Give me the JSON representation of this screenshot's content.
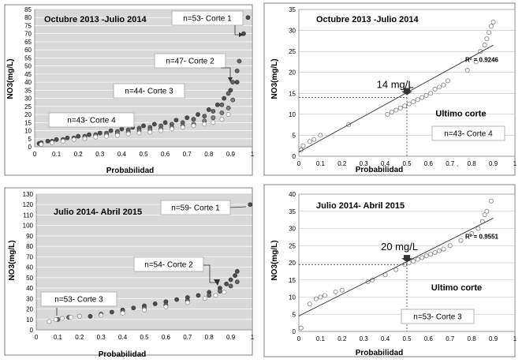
{
  "chart_data": [
    {
      "type": "scatter",
      "title": "Octubre 2013 -Julio 2014",
      "xlabel": "Probabilidad",
      "ylabel": "NO3(mg/L)",
      "xlim": [
        0,
        1
      ],
      "ylim": [
        0,
        85
      ],
      "xticks": [
        "0",
        "0.1",
        "0.2",
        "0.3",
        "0.4",
        "0.5",
        "0.6",
        "0.7",
        "0.8",
        "0.9",
        "1"
      ],
      "yticks": [
        "0",
        "5",
        "10",
        "15",
        "20",
        "25",
        "30",
        "35",
        "40",
        "45",
        "50",
        "55",
        "60",
        "65",
        "70",
        "75",
        "80",
        "85"
      ],
      "background": "#d9d9d9",
      "series": [
        {
          "name": "n=53- Corte 1",
          "color": "#4d4d4d",
          "points": [
            [
              0.02,
              2
            ],
            [
              0.06,
              3.5
            ],
            [
              0.1,
              4.5
            ],
            [
              0.15,
              5.5
            ],
            [
              0.2,
              6.5
            ],
            [
              0.25,
              7.5
            ],
            [
              0.3,
              8.5
            ],
            [
              0.35,
              10
            ],
            [
              0.4,
              11
            ],
            [
              0.45,
              12
            ],
            [
              0.5,
              13
            ],
            [
              0.55,
              14
            ],
            [
              0.6,
              15
            ],
            [
              0.65,
              16.5
            ],
            [
              0.7,
              18
            ],
            [
              0.75,
              20
            ],
            [
              0.8,
              23
            ],
            [
              0.84,
              26
            ],
            [
              0.87,
              30
            ],
            [
              0.9,
              35
            ],
            [
              0.93,
              40
            ],
            [
              0.96,
              70
            ],
            [
              0.98,
              80
            ]
          ]
        },
        {
          "name": "n=47- Corte 2",
          "color": "#666666",
          "points": [
            [
              0.03,
              2.5
            ],
            [
              0.08,
              3.5
            ],
            [
              0.13,
              4.5
            ],
            [
              0.18,
              5.5
            ],
            [
              0.23,
              6.5
            ],
            [
              0.28,
              7.5
            ],
            [
              0.33,
              8.5
            ],
            [
              0.38,
              9.5
            ],
            [
              0.43,
              10.5
            ],
            [
              0.48,
              11.5
            ],
            [
              0.53,
              12
            ],
            [
              0.58,
              13
            ],
            [
              0.63,
              14
            ],
            [
              0.68,
              15
            ],
            [
              0.73,
              17
            ],
            [
              0.78,
              19
            ],
            [
              0.82,
              22
            ],
            [
              0.86,
              26
            ],
            [
              0.89,
              33
            ],
            [
              0.91,
              40
            ],
            [
              0.93,
              47
            ],
            [
              0.94,
              53
            ]
          ]
        },
        {
          "name": "n=44- Corte 3",
          "color": "#7f7f7f",
          "points": [
            [
              0.03,
              2
            ],
            [
              0.08,
              3
            ],
            [
              0.13,
              4
            ],
            [
              0.18,
              5
            ],
            [
              0.23,
              6
            ],
            [
              0.28,
              7
            ],
            [
              0.33,
              7.5
            ],
            [
              0.38,
              8.5
            ],
            [
              0.43,
              9
            ],
            [
              0.48,
              10
            ],
            [
              0.53,
              10.5
            ],
            [
              0.58,
              11
            ],
            [
              0.63,
              12
            ],
            [
              0.68,
              13
            ],
            [
              0.73,
              14
            ],
            [
              0.78,
              16
            ],
            [
              0.82,
              18
            ],
            [
              0.86,
              21
            ],
            [
              0.89,
              24
            ],
            [
              0.91,
              29
            ]
          ]
        },
        {
          "name": "n=43- Corte 4",
          "color": "#ffffff",
          "points": [
            [
              0.03,
              1.5
            ],
            [
              0.08,
              2.5
            ],
            [
              0.13,
              3.5
            ],
            [
              0.18,
              4.5
            ],
            [
              0.23,
              5
            ],
            [
              0.28,
              6
            ],
            [
              0.33,
              6.5
            ],
            [
              0.38,
              7
            ],
            [
              0.43,
              8
            ],
            [
              0.48,
              8.5
            ],
            [
              0.53,
              9
            ],
            [
              0.58,
              10
            ],
            [
              0.63,
              11
            ],
            [
              0.68,
              12
            ],
            [
              0.73,
              13
            ],
            [
              0.78,
              14
            ],
            [
              0.82,
              15
            ],
            [
              0.86,
              17
            ],
            [
              0.89,
              20
            ]
          ]
        }
      ],
      "annotations": [
        "n=53- Corte 1",
        "n=47- Corte 2",
        "n=44- Corte 3",
        "n=43- Corte 4"
      ]
    },
    {
      "type": "scatter",
      "title": "Octubre 2013 -Julio 2014",
      "xlabel": "Probabilidad",
      "ylabel": "NO3(mg/L)",
      "xlim": [
        0,
        1
      ],
      "ylim": [
        0,
        35
      ],
      "xticks": [
        "0",
        "0.1",
        "0.2",
        "0.3",
        "0.4",
        "0.5",
        "0.6",
        "0.7",
        "0.8",
        "0.9",
        "1"
      ],
      "yticks": [
        "0",
        "5",
        "10",
        "15",
        "20",
        "25",
        "30",
        "35"
      ],
      "background": "#ffffff",
      "points": [
        [
          0.01,
          1.5
        ],
        [
          0.02,
          2.5
        ],
        [
          0.05,
          3.5
        ],
        [
          0.07,
          4
        ],
        [
          0.1,
          5
        ],
        [
          0.23,
          7.5
        ],
        [
          0.41,
          10
        ],
        [
          0.43,
          10.5
        ],
        [
          0.45,
          11
        ],
        [
          0.47,
          11.5
        ],
        [
          0.49,
          12
        ],
        [
          0.51,
          12.5
        ],
        [
          0.53,
          13
        ],
        [
          0.55,
          13.5
        ],
        [
          0.57,
          14
        ],
        [
          0.59,
          14.5
        ],
        [
          0.61,
          15
        ],
        [
          0.63,
          16
        ],
        [
          0.65,
          16.5
        ],
        [
          0.67,
          17
        ],
        [
          0.69,
          18
        ],
        [
          0.78,
          20.5
        ],
        [
          0.82,
          22.5
        ],
        [
          0.84,
          25
        ],
        [
          0.86,
          26.5
        ],
        [
          0.87,
          28
        ],
        [
          0.88,
          29.5
        ],
        [
          0.89,
          31
        ],
        [
          0.9,
          32
        ]
      ],
      "trendline": {
        "x1": 0,
        "y1": 1,
        "x2": 0.9,
        "y2": 26.5
      },
      "reference": {
        "x": 0.5,
        "y": 14
      },
      "reference_label": "14 mg/L",
      "r2_label": "R² = 0.9246",
      "subtitle": "Ultimo corte",
      "box_label": "n=43- Corte 4",
      "stray_mark": "`"
    },
    {
      "type": "scatter",
      "title": "Julio 2014- Abril 2015",
      "xlabel": "Probabilidad",
      "ylabel": "NO3(mg/L)",
      "xlim": [
        0,
        1
      ],
      "ylim": [
        0,
        130
      ],
      "xticks": [
        "0",
        "0.1",
        "0.2",
        "0.3",
        "0.4",
        "0.5",
        "0.6",
        "0.7",
        "0.8",
        "0.9",
        "1"
      ],
      "yticks": [
        "0",
        "10",
        "20",
        "30",
        "40",
        "50",
        "60",
        "70",
        "80",
        "90",
        "100",
        "110",
        "120",
        "130"
      ],
      "background": "#d9d9d9",
      "series": [
        {
          "name": "n=59- Corte 1",
          "color": "#4d4d4d",
          "points": [
            [
              0.25,
              13
            ],
            [
              0.3,
              15
            ],
            [
              0.35,
              17
            ],
            [
              0.4,
              19
            ],
            [
              0.45,
              21
            ],
            [
              0.5,
              23
            ],
            [
              0.55,
              25
            ],
            [
              0.6,
              27
            ],
            [
              0.65,
              29
            ],
            [
              0.7,
              31
            ],
            [
              0.75,
              33
            ],
            [
              0.8,
              36
            ],
            [
              0.85,
              40
            ],
            [
              0.88,
              44
            ],
            [
              0.9,
              48
            ],
            [
              0.92,
              52
            ],
            [
              0.93,
              56
            ],
            [
              0.99,
              120
            ]
          ]
        },
        {
          "name": "n=54- Corte 2",
          "color": "#666666",
          "points": [
            [
              0.1,
              10
            ],
            [
              0.15,
              12
            ],
            [
              0.2,
              13
            ],
            [
              0.3,
              15
            ],
            [
              0.4,
              18
            ],
            [
              0.5,
              21
            ],
            [
              0.6,
              24
            ],
            [
              0.7,
              28
            ],
            [
              0.8,
              33
            ],
            [
              0.85,
              37
            ],
            [
              0.9,
              42
            ],
            [
              0.93,
              46
            ]
          ]
        },
        {
          "name": "n=53- Corte 3",
          "color": "#ffffff",
          "points": [
            [
              0.06,
              8
            ],
            [
              0.09,
              10
            ],
            [
              0.12,
              11
            ],
            [
              0.16,
              12
            ],
            [
              0.2,
              13
            ],
            [
              0.3,
              14
            ],
            [
              0.4,
              16
            ],
            [
              0.5,
              19
            ],
            [
              0.6,
              22
            ],
            [
              0.7,
              26
            ],
            [
              0.78,
              30
            ],
            [
              0.83,
              33
            ],
            [
              0.87,
              36
            ]
          ]
        }
      ],
      "annotations": [
        "n=59- Corte 1",
        "n=54- Corte 2",
        "n=53- Corte 3"
      ]
    },
    {
      "type": "scatter",
      "title": "Julio 2014- Abril 2015",
      "xlabel": "Probabilidad",
      "ylabel": "NO3(mg/L)",
      "xlim": [
        0,
        1
      ],
      "ylim": [
        0,
        40
      ],
      "xticks": [
        "0",
        "0.1",
        "0.2",
        "0.3",
        "0.4",
        "0.5",
        "0.6",
        "0.7",
        "0.8",
        "0.9",
        "1"
      ],
      "yticks": [
        "0",
        "5",
        "10",
        "15",
        "20",
        "25",
        "30",
        "35",
        "40"
      ],
      "background": "#ffffff",
      "points": [
        [
          0.01,
          1
        ],
        [
          0.05,
          8
        ],
        [
          0.08,
          9.5
        ],
        [
          0.1,
          10
        ],
        [
          0.12,
          10.5
        ],
        [
          0.17,
          11.5
        ],
        [
          0.2,
          12
        ],
        [
          0.32,
          14.5
        ],
        [
          0.34,
          15
        ],
        [
          0.4,
          16.5
        ],
        [
          0.45,
          18
        ],
        [
          0.49,
          19.5
        ],
        [
          0.51,
          20
        ],
        [
          0.53,
          20.5
        ],
        [
          0.55,
          21
        ],
        [
          0.57,
          21.5
        ],
        [
          0.59,
          22
        ],
        [
          0.61,
          22.5
        ],
        [
          0.63,
          23
        ],
        [
          0.65,
          23.5
        ],
        [
          0.67,
          24
        ],
        [
          0.7,
          25
        ],
        [
          0.75,
          26.5
        ],
        [
          0.8,
          28.5
        ],
        [
          0.83,
          30
        ],
        [
          0.85,
          32
        ],
        [
          0.86,
          34
        ],
        [
          0.87,
          35
        ],
        [
          0.89,
          38
        ]
      ],
      "trendline": {
        "x1": 0,
        "y1": 4.5,
        "x2": 0.9,
        "y2": 33
      },
      "reference": {
        "x": 0.5,
        "y": 19.5
      },
      "reference_label": "20 mg/L",
      "r2_label": "R² = 0.9551",
      "subtitle": "Ultimo corte",
      "box_label": "n=53- Corte 3"
    }
  ]
}
